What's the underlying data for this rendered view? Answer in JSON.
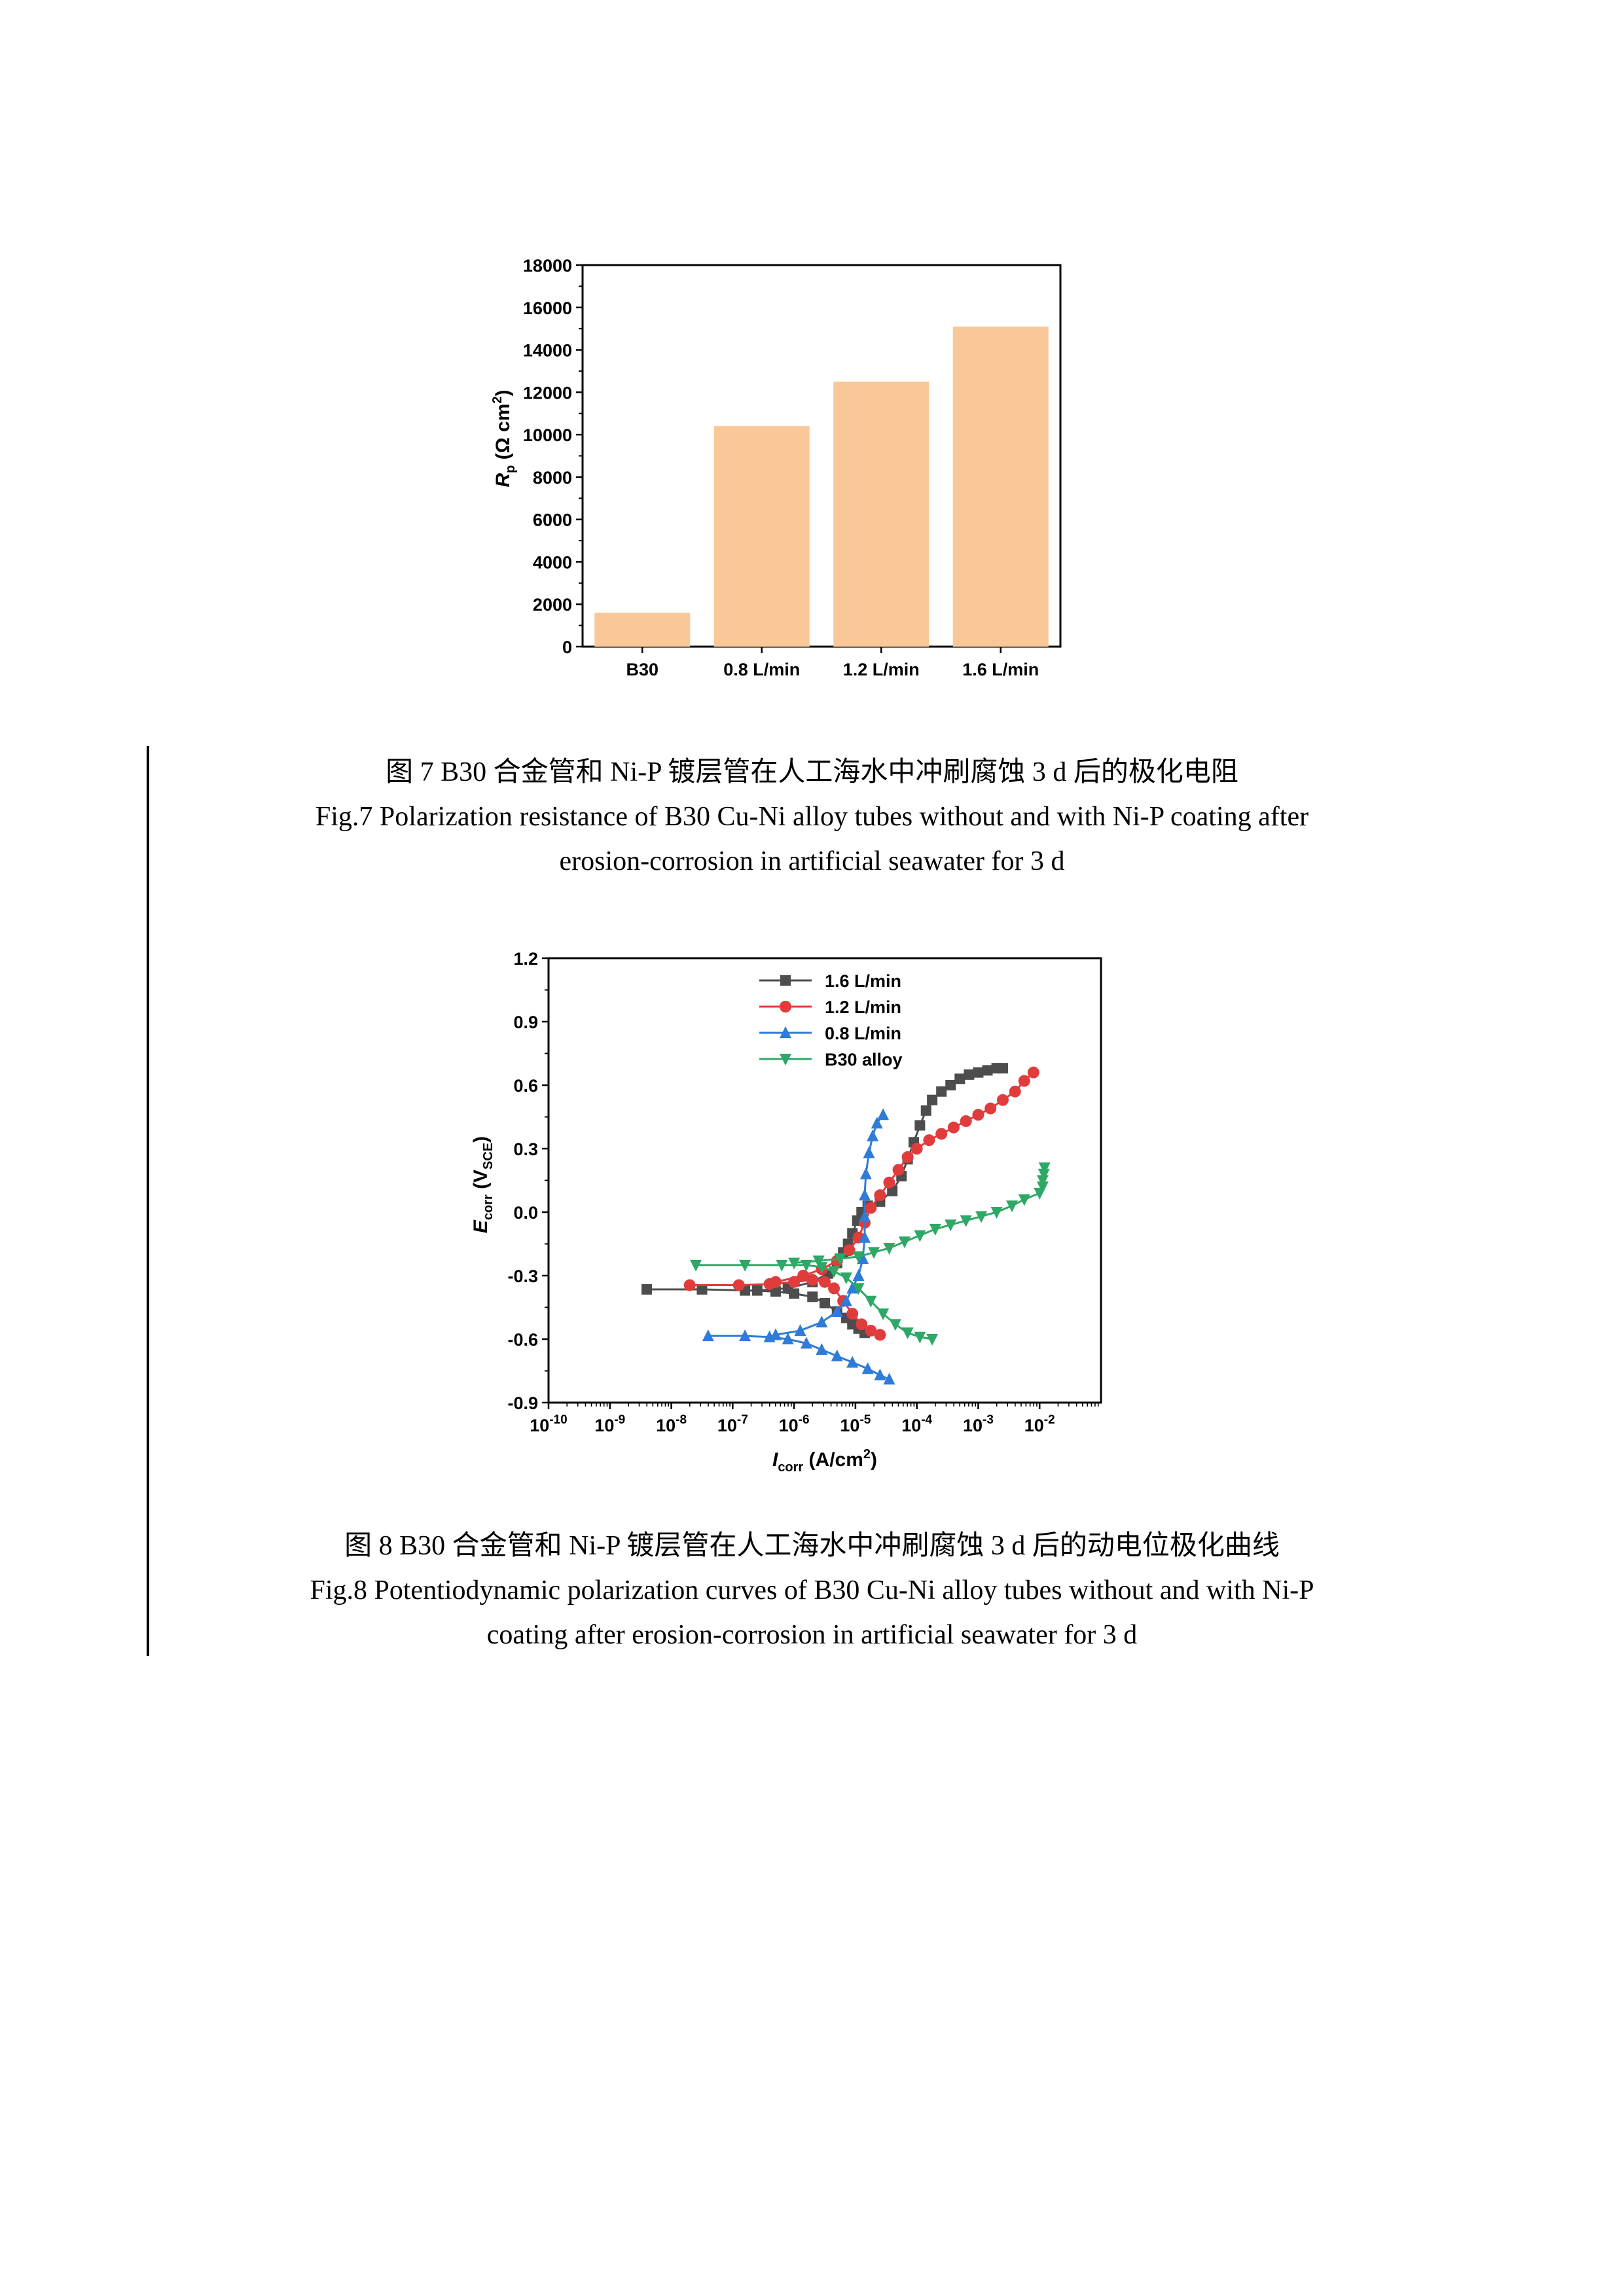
{
  "figure7": {
    "caption_cn": "图 7 B30 合金管和 Ni-P 镀层管在人工海水中冲刷腐蚀 3 d 后的极化电阻",
    "caption_en_1": "Fig.7 Polarization resistance of B30 Cu-Ni alloy tubes without and with Ni-P coating after",
    "caption_en_2": "erosion-corrosion in artificial seawater for 3 d"
  },
  "figure8": {
    "caption_cn": "图 8 B30 合金管和 Ni-P 镀层管在人工海水中冲刷腐蚀 3 d 后的动电位极化曲线",
    "caption_en_1": "Fig.8 Potentiodynamic polarization curves of B30 Cu-Ni alloy tubes without and with Ni-P",
    "caption_en_2": "coating after erosion-corrosion in artificial seawater for 3 d"
  },
  "chart_data": [
    {
      "type": "bar",
      "categories": [
        "B30",
        "0.8 L/min",
        "1.2 L/min",
        "1.6 L/min"
      ],
      "values": [
        1600,
        10400,
        12500,
        15100
      ],
      "ylabel": "R_p (Ω cm²)",
      "ylabel_parts": {
        "main": "R",
        "sub": "p",
        "rest": " (Ω cm",
        "sup": "2",
        "end": ")"
      },
      "ylim": [
        0,
        18000
      ],
      "yticks": [
        0,
        2000,
        4000,
        6000,
        8000,
        10000,
        12000,
        14000,
        16000,
        18000
      ],
      "bar_color": "#FAC898",
      "grid": false,
      "legend": "none"
    },
    {
      "type": "line",
      "x_scale": "log",
      "xlim": [
        1e-10,
        0.1
      ],
      "ylim": [
        -0.9,
        1.2
      ],
      "xlabel": "I_corr (A/cm²)",
      "xlabel_parts": {
        "main": "I",
        "sub": "corr",
        "rest": " (A/cm",
        "sup": "2",
        "end": ")"
      },
      "ylabel": "E_corr (V_SCE)",
      "ylabel_parts": {
        "main": "E",
        "sub": "corr",
        "rest": " (V",
        "sub2": "SCE",
        "end": ")"
      },
      "xtick_exponents": [
        -10,
        -9,
        -8,
        -7,
        -6,
        -5,
        -4,
        -3,
        -2
      ],
      "yticks": [
        "-0.9",
        "-0.6",
        "-0.3",
        "0.0",
        "0.3",
        "0.6",
        "0.9",
        "1.2"
      ],
      "legend": "top-center",
      "grid": false,
      "series": [
        {
          "name": "1.6 L/min",
          "color": "#4D4D4D",
          "marker": "square",
          "points": [
            [
              -8.4,
              -0.365
            ],
            [
              -7.5,
              -0.365
            ],
            [
              -6.8,
              -0.37
            ],
            [
              -6.3,
              -0.375
            ],
            [
              -6.0,
              -0.385
            ],
            [
              -5.7,
              -0.4
            ],
            [
              -5.5,
              -0.43
            ],
            [
              -5.3,
              -0.47
            ],
            [
              -5.15,
              -0.5
            ],
            [
              -5.05,
              -0.53
            ],
            [
              -4.95,
              -0.55
            ],
            [
              -4.85,
              -0.57
            ],
            [
              -6.6,
              -0.37
            ],
            [
              -6.1,
              -0.36
            ],
            [
              -5.7,
              -0.33
            ],
            [
              -5.45,
              -0.29
            ],
            [
              -5.3,
              -0.24
            ],
            [
              -5.2,
              -0.19
            ],
            [
              -5.12,
              -0.15
            ],
            [
              -5.05,
              -0.1
            ],
            [
              -4.97,
              -0.04
            ],
            [
              -4.9,
              0.0
            ],
            [
              -4.8,
              0.03
            ],
            [
              -4.6,
              0.05
            ],
            [
              -4.4,
              0.1
            ],
            [
              -4.25,
              0.17
            ],
            [
              -4.15,
              0.25
            ],
            [
              -4.05,
              0.33
            ],
            [
              -3.95,
              0.41
            ],
            [
              -3.85,
              0.48
            ],
            [
              -3.75,
              0.53
            ],
            [
              -3.6,
              0.57
            ],
            [
              -3.45,
              0.6
            ],
            [
              -3.3,
              0.63
            ],
            [
              -3.15,
              0.65
            ],
            [
              -3.0,
              0.66
            ],
            [
              -2.85,
              0.67
            ],
            [
              -2.7,
              0.68
            ],
            [
              -2.6,
              0.68
            ]
          ]
        },
        {
          "name": "1.2 L/min",
          "color": "#E03C3C",
          "marker": "circle",
          "points": [
            [
              -7.7,
              -0.345
            ],
            [
              -6.9,
              -0.345
            ],
            [
              -6.4,
              -0.34
            ],
            [
              -6.0,
              -0.33
            ],
            [
              -5.7,
              -0.32
            ],
            [
              -5.5,
              -0.33
            ],
            [
              -5.35,
              -0.36
            ],
            [
              -5.2,
              -0.42
            ],
            [
              -5.05,
              -0.48
            ],
            [
              -4.9,
              -0.53
            ],
            [
              -4.75,
              -0.56
            ],
            [
              -4.6,
              -0.58
            ],
            [
              -6.3,
              -0.33
            ],
            [
              -5.85,
              -0.3
            ],
            [
              -5.55,
              -0.27
            ],
            [
              -5.3,
              -0.23
            ],
            [
              -5.1,
              -0.18
            ],
            [
              -4.95,
              -0.12
            ],
            [
              -4.85,
              -0.05
            ],
            [
              -4.75,
              0.02
            ],
            [
              -4.6,
              0.08
            ],
            [
              -4.45,
              0.14
            ],
            [
              -4.3,
              0.2
            ],
            [
              -4.15,
              0.26
            ],
            [
              -4.0,
              0.3
            ],
            [
              -3.8,
              0.34
            ],
            [
              -3.6,
              0.37
            ],
            [
              -3.4,
              0.4
            ],
            [
              -3.2,
              0.43
            ],
            [
              -3.0,
              0.46
            ],
            [
              -2.8,
              0.49
            ],
            [
              -2.6,
              0.53
            ],
            [
              -2.4,
              0.57
            ],
            [
              -2.25,
              0.62
            ],
            [
              -2.1,
              0.66
            ]
          ]
        },
        {
          "name": "0.8 L/min",
          "color": "#2F7BD8",
          "marker": "triangle-up",
          "points": [
            [
              -7.4,
              -0.585
            ],
            [
              -6.8,
              -0.585
            ],
            [
              -6.4,
              -0.59
            ],
            [
              -6.1,
              -0.6
            ],
            [
              -5.8,
              -0.62
            ],
            [
              -5.55,
              -0.65
            ],
            [
              -5.3,
              -0.68
            ],
            [
              -5.05,
              -0.71
            ],
            [
              -4.8,
              -0.74
            ],
            [
              -4.6,
              -0.77
            ],
            [
              -4.45,
              -0.79
            ],
            [
              -6.3,
              -0.58
            ],
            [
              -5.9,
              -0.56
            ],
            [
              -5.55,
              -0.52
            ],
            [
              -5.3,
              -0.47
            ],
            [
              -5.15,
              -0.42
            ],
            [
              -5.05,
              -0.36
            ],
            [
              -4.95,
              -0.3
            ],
            [
              -4.88,
              -0.22
            ],
            [
              -4.85,
              -0.12
            ],
            [
              -4.85,
              -0.02
            ],
            [
              -4.85,
              0.08
            ],
            [
              -4.83,
              0.18
            ],
            [
              -4.78,
              0.28
            ],
            [
              -4.72,
              0.36
            ],
            [
              -4.65,
              0.42
            ],
            [
              -4.55,
              0.46
            ]
          ]
        },
        {
          "name": "B30 alloy",
          "color": "#2EA866",
          "marker": "triangle-down",
          "points": [
            [
              -7.6,
              -0.25
            ],
            [
              -6.8,
              -0.25
            ],
            [
              -6.2,
              -0.25
            ],
            [
              -5.8,
              -0.25
            ],
            [
              -5.55,
              -0.26
            ],
            [
              -5.35,
              -0.28
            ],
            [
              -5.15,
              -0.31
            ],
            [
              -4.95,
              -0.36
            ],
            [
              -4.75,
              -0.42
            ],
            [
              -4.55,
              -0.48
            ],
            [
              -4.35,
              -0.53
            ],
            [
              -4.15,
              -0.57
            ],
            [
              -3.95,
              -0.59
            ],
            [
              -3.75,
              -0.6
            ],
            [
              -6.0,
              -0.24
            ],
            [
              -5.6,
              -0.23
            ],
            [
              -5.25,
              -0.22
            ],
            [
              -4.95,
              -0.21
            ],
            [
              -4.7,
              -0.19
            ],
            [
              -4.45,
              -0.17
            ],
            [
              -4.2,
              -0.14
            ],
            [
              -3.95,
              -0.11
            ],
            [
              -3.7,
              -0.08
            ],
            [
              -3.45,
              -0.06
            ],
            [
              -3.2,
              -0.04
            ],
            [
              -2.95,
              -0.02
            ],
            [
              -2.7,
              0.0
            ],
            [
              -2.45,
              0.03
            ],
            [
              -2.25,
              0.06
            ],
            [
              -2.0,
              0.09
            ],
            [
              -1.95,
              0.12
            ],
            [
              -1.95,
              0.15
            ],
            [
              -1.93,
              0.18
            ],
            [
              -1.92,
              0.21
            ]
          ]
        }
      ]
    }
  ]
}
